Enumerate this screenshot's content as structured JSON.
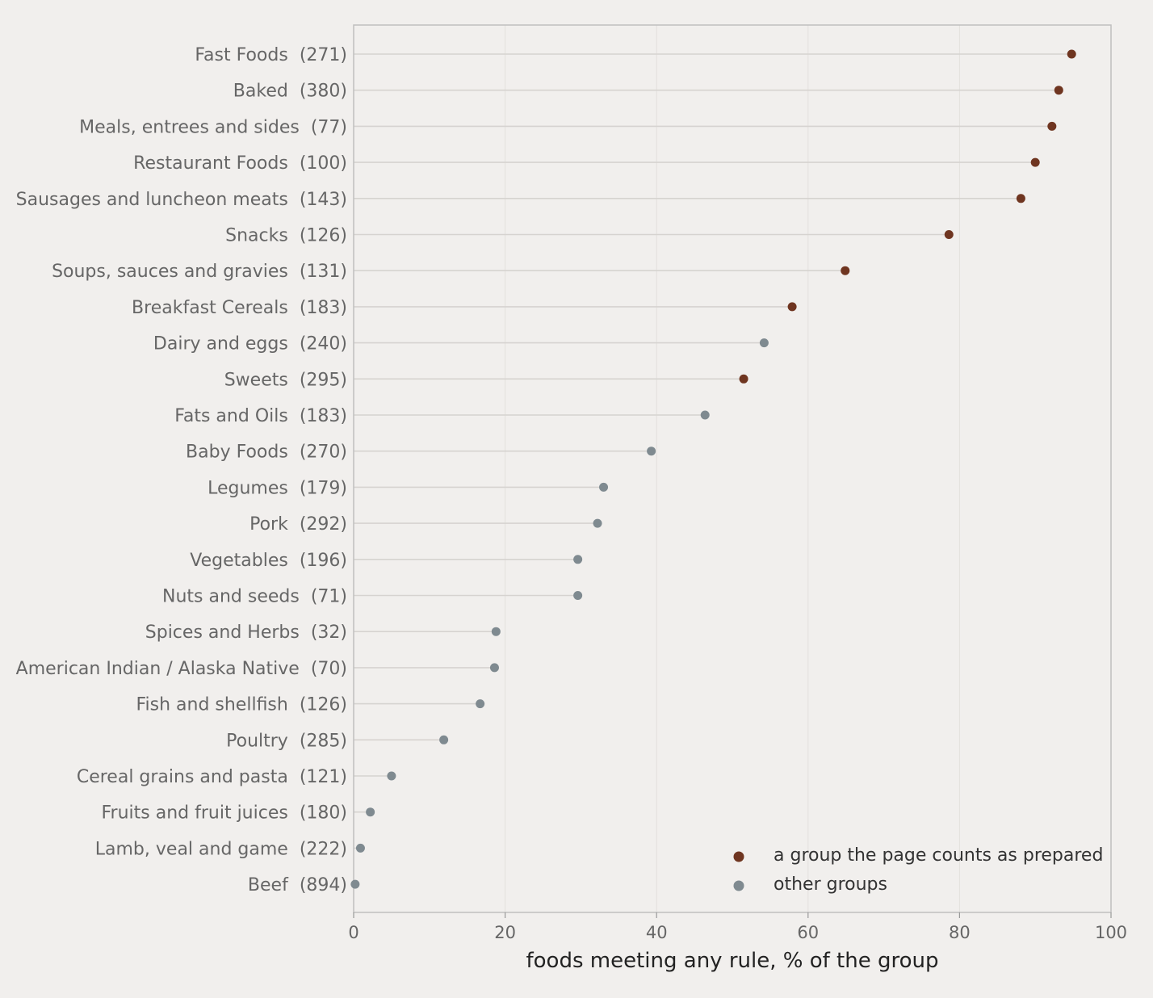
{
  "chart_data": {
    "type": "scatter",
    "xlabel": "foods meeting any rule, % of the group",
    "xlim": [
      0,
      100
    ],
    "xticks": [
      0,
      20,
      40,
      60,
      80,
      100
    ],
    "grid": true,
    "legend_position": "bottom-right",
    "colors": {
      "prepared": "#6f3520",
      "other": "#7f8a90"
    },
    "legend": [
      {
        "key": "prepared",
        "label": "a group the page counts as prepared"
      },
      {
        "key": "other",
        "label": "other groups"
      }
    ],
    "categories": [
      {
        "name": "Fast Foods",
        "count": "(271)",
        "value": 94.8,
        "prepared": true
      },
      {
        "name": "Baked",
        "count": "(380)",
        "value": 93.1,
        "prepared": true
      },
      {
        "name": "Meals, entrees and sides",
        "count": "(77)",
        "value": 92.2,
        "prepared": true
      },
      {
        "name": "Restaurant Foods",
        "count": "(100)",
        "value": 90.0,
        "prepared": true
      },
      {
        "name": "Sausages and luncheon meats",
        "count": "(143)",
        "value": 88.1,
        "prepared": true
      },
      {
        "name": "Snacks",
        "count": "(126)",
        "value": 78.6,
        "prepared": true
      },
      {
        "name": "Soups, sauces and gravies",
        "count": "(131)",
        "value": 64.9,
        "prepared": true
      },
      {
        "name": "Breakfast Cereals",
        "count": "(183)",
        "value": 57.9,
        "prepared": true
      },
      {
        "name": "Dairy and eggs",
        "count": "(240)",
        "value": 54.2,
        "prepared": false
      },
      {
        "name": "Sweets",
        "count": "(295)",
        "value": 51.5,
        "prepared": true
      },
      {
        "name": "Fats and Oils",
        "count": "(183)",
        "value": 46.4,
        "prepared": false
      },
      {
        "name": "Baby Foods",
        "count": "(270)",
        "value": 39.3,
        "prepared": false
      },
      {
        "name": "Legumes",
        "count": "(179)",
        "value": 33.0,
        "prepared": false
      },
      {
        "name": "Pork",
        "count": "(292)",
        "value": 32.2,
        "prepared": false
      },
      {
        "name": "Vegetables",
        "count": "(196)",
        "value": 29.6,
        "prepared": false
      },
      {
        "name": "Nuts and seeds",
        "count": "(71)",
        "value": 29.6,
        "prepared": false
      },
      {
        "name": "Spices and Herbs",
        "count": "(32)",
        "value": 18.8,
        "prepared": false
      },
      {
        "name": "American Indian / Alaska Native",
        "count": "(70)",
        "value": 18.6,
        "prepared": false
      },
      {
        "name": "Fish and shellfish",
        "count": "(126)",
        "value": 16.7,
        "prepared": false
      },
      {
        "name": "Poultry",
        "count": "(285)",
        "value": 11.9,
        "prepared": false
      },
      {
        "name": "Cereal grains and pasta",
        "count": "(121)",
        "value": 5.0,
        "prepared": false
      },
      {
        "name": "Fruits and fruit juices",
        "count": "(180)",
        "value": 2.2,
        "prepared": false
      },
      {
        "name": "Lamb, veal and game",
        "count": "(222)",
        "value": 0.9,
        "prepared": false
      },
      {
        "name": "Beef",
        "count": "(894)",
        "value": 0.2,
        "prepared": false
      }
    ]
  }
}
